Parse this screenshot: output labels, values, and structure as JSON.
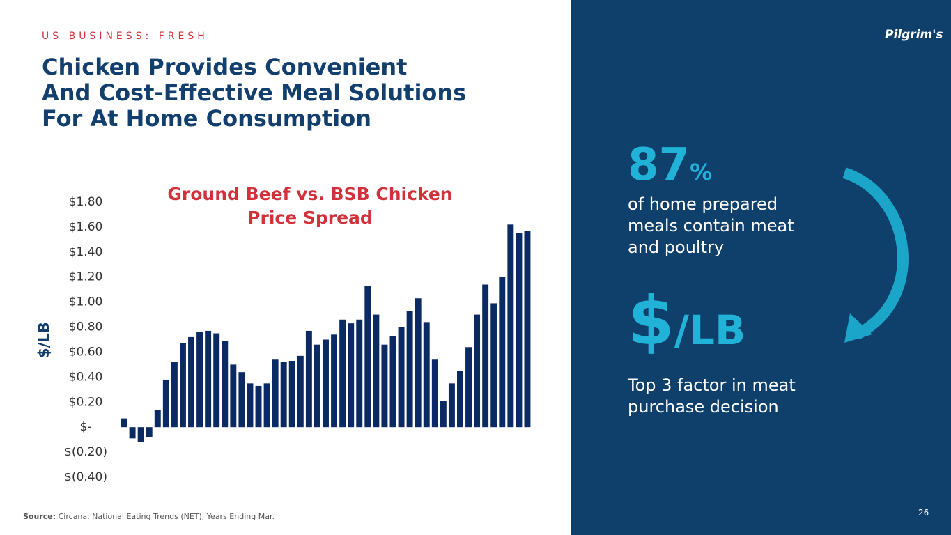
{
  "header": {
    "section": "US BUSINESS: FRESH",
    "title_lines": [
      "Chicken Provides Convenient",
      "And Cost-Effective Meal Solutions",
      "For At Home Consumption"
    ],
    "logo": "Pilgrim's"
  },
  "chart_data": {
    "type": "bar",
    "title": "Ground Beef vs. BSB Chicken Price Spread",
    "y_label": "$/LB",
    "color": "#0b2a63",
    "categories": [
      null,
      null,
      null,
      null,
      null,
      null,
      null,
      null,
      null,
      null,
      null,
      null,
      null,
      null,
      null,
      null,
      null,
      null,
      null,
      null,
      null,
      null,
      null,
      null,
      null,
      null,
      null,
      null,
      null,
      null,
      null,
      null,
      null,
      null,
      null,
      null,
      null,
      null,
      null,
      null,
      null,
      null,
      null,
      null,
      null,
      null,
      null,
      null,
      null
    ],
    "values": [
      0.07,
      -0.09,
      -0.12,
      -0.08,
      0.14,
      0.38,
      0.52,
      0.67,
      0.72,
      0.76,
      0.77,
      0.75,
      0.69,
      0.5,
      0.44,
      0.35,
      0.33,
      0.35,
      0.54,
      0.52,
      0.53,
      0.57,
      0.77,
      0.66,
      0.7,
      0.74,
      0.86,
      0.83,
      0.86,
      1.13,
      0.9,
      0.66,
      0.73,
      0.8,
      0.93,
      1.03,
      0.84,
      0.54,
      0.21,
      0.35,
      0.45,
      0.64,
      0.9,
      1.14,
      0.99,
      1.2,
      1.62,
      1.55,
      1.57
    ],
    "ylim": [
      -0.4,
      1.8
    ],
    "yticks": [
      {
        "value": -0.4,
        "label": "$(0.40)"
      },
      {
        "value": -0.2,
        "label": "$(0.20)"
      },
      {
        "value": 0,
        "label": "$-"
      },
      {
        "value": 0.2,
        "label": "$0.20"
      },
      {
        "value": 0.4,
        "label": "$0.40"
      },
      {
        "value": 0.6,
        "label": "$0.60"
      },
      {
        "value": 0.8,
        "label": "$0.80"
      },
      {
        "value": 1,
        "label": "$1.00"
      },
      {
        "value": 1.2,
        "label": "$1.20"
      },
      {
        "value": 1.4,
        "label": "$1.40"
      },
      {
        "value": 1.6,
        "label": "$1.60"
      },
      {
        "value": 1.8,
        "label": "$1.80"
      }
    ],
    "grid": false
  },
  "stats": [
    {
      "number": "87",
      "unit": "%",
      "text": "of home prepared meals contain meat and poultry"
    },
    {
      "number": "$",
      "unit": "/LB",
      "text": "Top 3 factor in meat purchase decision"
    }
  ],
  "footer": {
    "source_label": "Source:",
    "source_text": "Circana, National Eating Trends (NET), Years Ending Mar.",
    "page": "26"
  }
}
